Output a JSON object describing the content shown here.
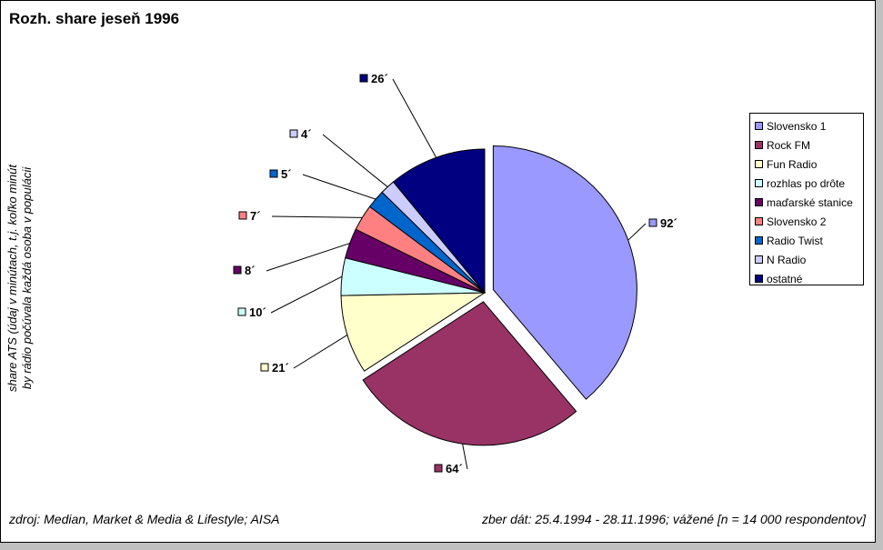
{
  "title": "Rozh. share jeseň 1996",
  "ylabel_line1": "share ATS (údaj v minútach, t.j. koľko minút",
  "ylabel_line2": "by rádio počúvala každá osoba v populácii",
  "footer_left": "zdroj: Median, Market & Media & Lifestyle; AISA",
  "footer_right": "zber dát: 25.4.1994 - 28.11.1996; vážené [n = 14 000 respondentov]",
  "chart_data": {
    "type": "pie",
    "title": "Rozh. share jeseň 1996",
    "legend_position": "right",
    "slices": [
      {
        "name": "Slovensko 1",
        "value": 92,
        "label": "92´",
        "color": "#9999ff"
      },
      {
        "name": "Rock FM",
        "value": 64,
        "label": "64´",
        "color": "#993366"
      },
      {
        "name": "Fun Radio",
        "value": 21,
        "label": "21´",
        "color": "#ffffcc"
      },
      {
        "name": "rozhlas po drôte",
        "value": 10,
        "label": "10´",
        "color": "#ccffff"
      },
      {
        "name": "maďarské stanice",
        "value": 8,
        "label": "8´",
        "color": "#660066"
      },
      {
        "name": "Slovensko 2",
        "value": 7,
        "label": "7´",
        "color": "#ff8080"
      },
      {
        "name": "Radio Twist",
        "value": 5,
        "label": "5´",
        "color": "#0066cc"
      },
      {
        "name": "N Radio",
        "value": 4,
        "label": "4´",
        "color": "#ccccff"
      },
      {
        "name": "ostatné",
        "value": 26,
        "label": "26´",
        "color": "#000080"
      }
    ]
  }
}
